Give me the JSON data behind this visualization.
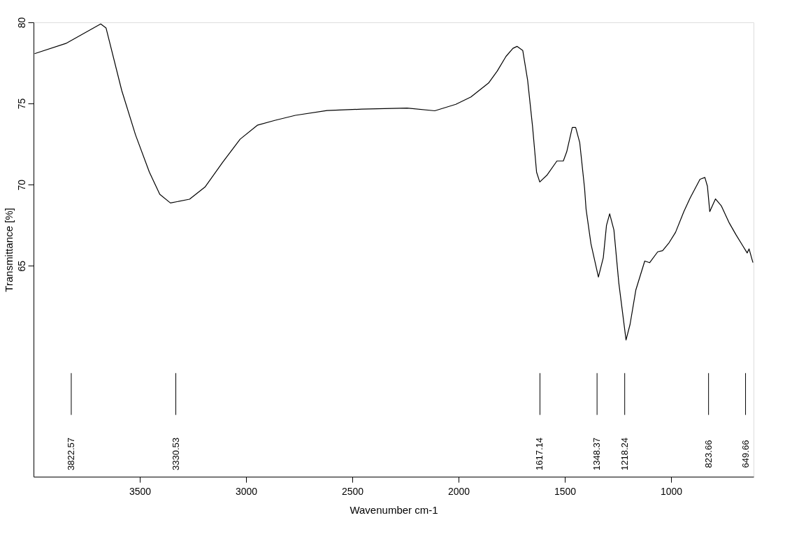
{
  "chart_data": {
    "type": "line",
    "xlabel": "Wavenumber cm-1",
    "ylabel": "Transmittance [%]",
    "xlim": [
      4000,
      612
    ],
    "xticks": [
      3500,
      3000,
      2500,
      2000,
      1500,
      1000
    ],
    "ylim": [
      52,
      80
    ],
    "yticks": [
      65,
      70,
      75,
      80
    ],
    "grid": false,
    "x": [
      3995,
      3848,
      3684,
      3659,
      3585,
      3520,
      3455,
      3406,
      3356,
      3266,
      3192,
      3110,
      3028,
      2947,
      2865,
      2768,
      2619,
      2456,
      2242,
      2112,
      2013,
      1942,
      1859,
      1818,
      1777,
      1744,
      1725,
      1698,
      1675,
      1652,
      1633,
      1618,
      1583,
      1537,
      1507,
      1491,
      1465,
      1449,
      1430,
      1407,
      1400,
      1377,
      1342,
      1319,
      1304,
      1289,
      1269,
      1246,
      1212,
      1193,
      1166,
      1124,
      1101,
      1063,
      1040,
      1009,
      979,
      940,
      910,
      864,
      841,
      829,
      818,
      791,
      764,
      726,
      695,
      665,
      642,
      633,
      615
    ],
    "series": [
      {
        "color": "#000000",
        "values": [
          78.07,
          78.7,
          79.9,
          79.66,
          75.8,
          73.06,
          70.77,
          69.4,
          68.87,
          69.1,
          69.87,
          71.38,
          72.8,
          73.66,
          73.96,
          74.27,
          74.57,
          74.65,
          74.72,
          74.55,
          74.95,
          75.4,
          76.26,
          77.0,
          77.9,
          78.4,
          78.52,
          78.27,
          76.43,
          73.6,
          70.77,
          70.16,
          70.6,
          71.46,
          71.46,
          72.03,
          73.52,
          73.52,
          72.6,
          69.76,
          68.48,
          66.35,
          64.3,
          65.5,
          67.49,
          68.2,
          67.2,
          63.94,
          60.43,
          61.39,
          63.5,
          65.29,
          65.19,
          65.86,
          65.93,
          66.43,
          67.06,
          68.34,
          69.19,
          70.33,
          70.44,
          69.9,
          68.34,
          69.12,
          68.7,
          67.63,
          66.92,
          66.28,
          65.79,
          66.04,
          65.2
        ]
      }
    ],
    "ref_lines": [
      {
        "axis": "x",
        "value": 3822.57,
        "label": "3822.57"
      },
      {
        "axis": "x",
        "value": 3330.53,
        "label": "3330.53"
      },
      {
        "axis": "x",
        "value": 1617.14,
        "label": "1617.14"
      },
      {
        "axis": "x",
        "value": 1348.37,
        "label": "1348.37"
      },
      {
        "axis": "x",
        "value": 1218.24,
        "label": "1218.24"
      },
      {
        "axis": "x",
        "value": 823.66,
        "label": "823.66"
      },
      {
        "axis": "x",
        "value": 649.66,
        "label": "649.66"
      }
    ]
  }
}
